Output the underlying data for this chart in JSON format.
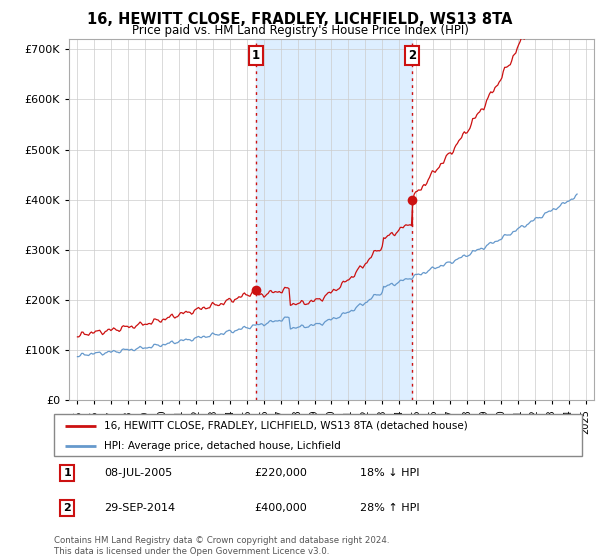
{
  "title": "16, HEWITT CLOSE, FRADLEY, LICHFIELD, WS13 8TA",
  "subtitle": "Price paid vs. HM Land Registry's House Price Index (HPI)",
  "hpi_color": "#6699cc",
  "price_color": "#cc1111",
  "shade_color": "#ddeeff",
  "marker1_date": 2005.52,
  "marker1_price": 220000,
  "marker1_label": "1",
  "marker2_date": 2014.75,
  "marker2_price": 400000,
  "marker2_label": "2",
  "legend_line1": "16, HEWITT CLOSE, FRADLEY, LICHFIELD, WS13 8TA (detached house)",
  "legend_line2": "HPI: Average price, detached house, Lichfield",
  "footer": "Contains HM Land Registry data © Crown copyright and database right 2024.\nThis data is licensed under the Open Government Licence v3.0.",
  "ylim": [
    0,
    720000
  ],
  "yticks": [
    0,
    100000,
    200000,
    300000,
    400000,
    500000,
    600000,
    700000
  ],
  "xlim_start": 1994.5,
  "xlim_end": 2025.5,
  "background_color": "#ffffff",
  "grid_color": "#cccccc"
}
